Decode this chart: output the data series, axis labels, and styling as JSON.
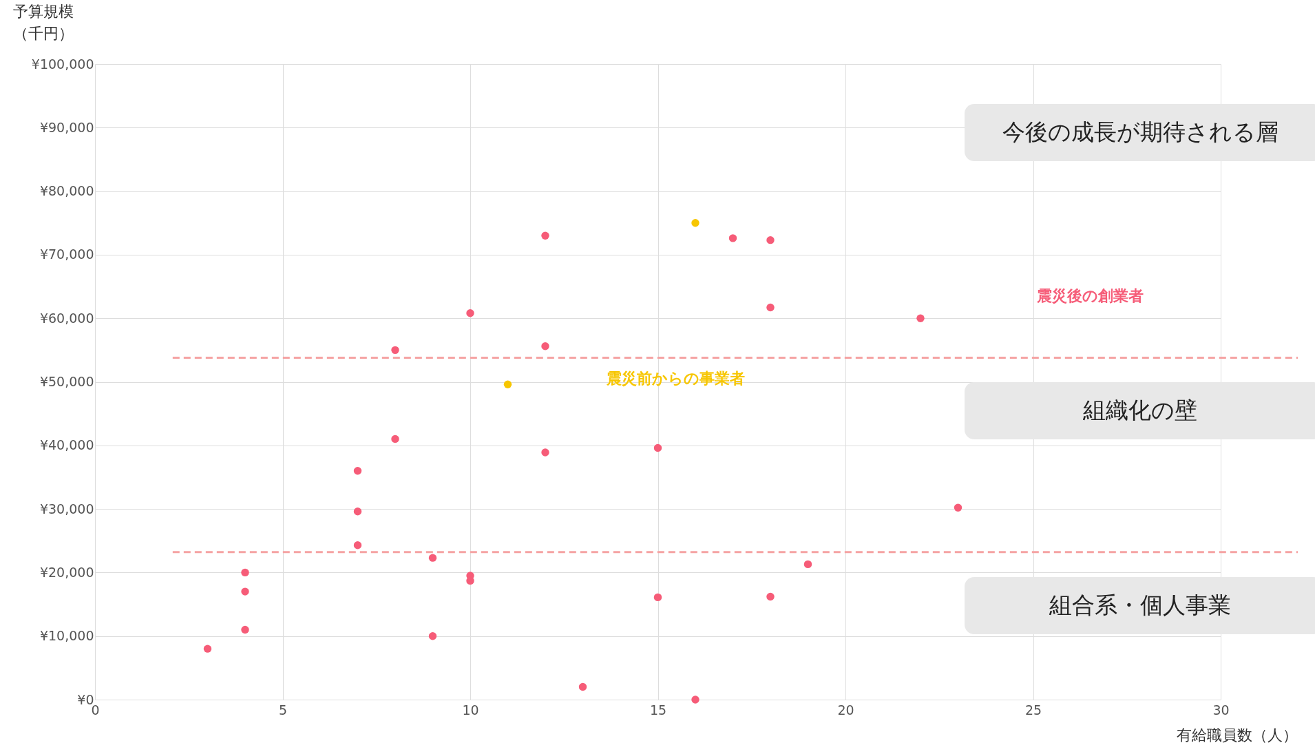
{
  "chart_data": {
    "type": "scatter",
    "xlabel": "有給職員数（人）",
    "ylabel": "予算規模（千円）",
    "xlim": [
      0,
      30
    ],
    "xticks": [
      0,
      5,
      10,
      15,
      20,
      25,
      30
    ],
    "ylim": [
      0,
      100000
    ],
    "yticks": [
      {
        "value": 0,
        "label": "¥0"
      },
      {
        "value": 10000,
        "label": "¥10,000"
      },
      {
        "value": 20000,
        "label": "¥20,000"
      },
      {
        "value": 30000,
        "label": "¥30,000"
      },
      {
        "value": 40000,
        "label": "¥40,000"
      },
      {
        "value": 50000,
        "label": "¥50,000"
      },
      {
        "value": 60000,
        "label": "¥60,000"
      },
      {
        "value": 70000,
        "label": "¥70,000"
      },
      {
        "value": 80000,
        "label": "¥80,000"
      },
      {
        "value": 90000,
        "label": "¥90,000"
      },
      {
        "value": 100000,
        "label": "¥100,000"
      }
    ],
    "grid": true,
    "marker": "circle",
    "series": [
      {
        "name": "震災後の創業者",
        "color": "#f65c78",
        "x": [
          3,
          4,
          4,
          4,
          7,
          7,
          7,
          8,
          8,
          9,
          9,
          10,
          10,
          10,
          12,
          12,
          12,
          13,
          15,
          15,
          16,
          17,
          18,
          18,
          18,
          19,
          22,
          23
        ],
        "values": [
          8000,
          20000,
          17000,
          11000,
          36000,
          29600,
          24300,
          55000,
          41000,
          22300,
          10000,
          60800,
          19500,
          18700,
          73000,
          55600,
          38900,
          2000,
          39600,
          16100,
          0,
          72600,
          72300,
          61700,
          16200,
          21300,
          60000,
          30200
        ]
      },
      {
        "name": "震災前からの事業者",
        "color": "#f7c600",
        "x": [
          16,
          11
        ],
        "values": [
          75000,
          49600
        ]
      }
    ],
    "ref_lines": [
      {
        "axis": "y",
        "value": 53800,
        "color": "#f5a3a3",
        "line_style": "dashed"
      },
      {
        "axis": "y",
        "value": 23200,
        "color": "#f5a3a3",
        "line_style": "dashed"
      }
    ],
    "annotations": [
      "今後の成長が期待される層",
      "組織化の壁",
      "組合系・個人事業"
    ]
  }
}
